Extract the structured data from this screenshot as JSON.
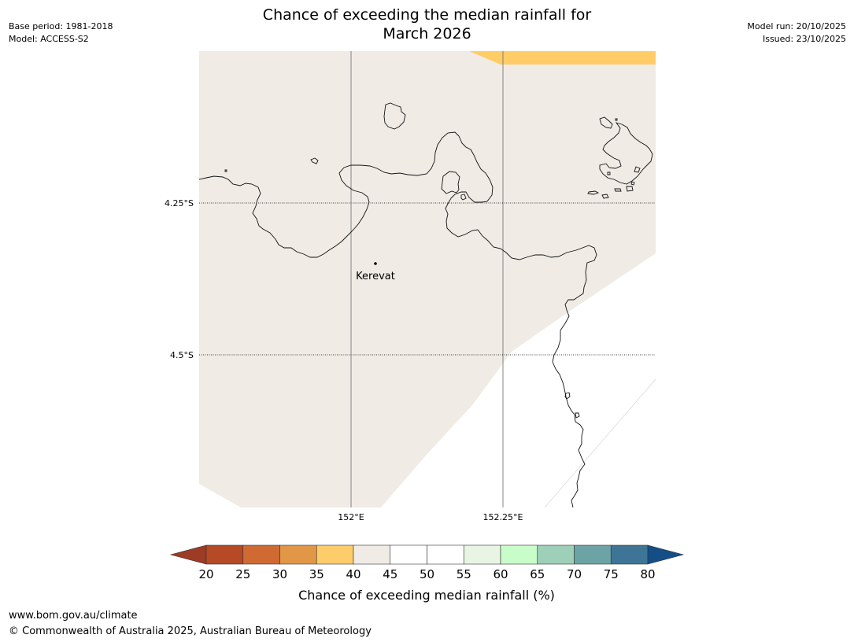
{
  "meta": {
    "base_period": "Base period: 1981-2018",
    "model": "Model: ACCESS-S2",
    "model_run": "Model run: 20/10/2025",
    "issued": "Issued: 23/10/2025"
  },
  "title": {
    "line1": "Chance of exceeding the median rainfall for",
    "line2": "March 2026"
  },
  "map": {
    "lat_labels": [
      "4.25°S",
      "4.5°S"
    ],
    "lon_labels": [
      "152°E",
      "152.25°E"
    ],
    "place": {
      "name": "Kerevat"
    },
    "colors": {
      "background": "#f0ebe5",
      "band_35_40": "#ffcc66",
      "coast": "#111111"
    }
  },
  "colorbar": {
    "tick_labels": [
      "20",
      "25",
      "30",
      "35",
      "40",
      "45",
      "50",
      "55",
      "60",
      "65",
      "70",
      "75",
      "80"
    ],
    "colors": [
      "#9d3b25",
      "#b64a27",
      "#d06a33",
      "#e29746",
      "#fdcc6b",
      "#f0ebe5",
      "#ffffff",
      "#ffffff",
      "#e8f5e4",
      "#c8fcc8",
      "#9ecfb8",
      "#6ca4a6",
      "#3e7597",
      "#134e86"
    ],
    "label": "Chance of exceeding median rainfall (%)"
  },
  "footer": {
    "website": "www.bom.gov.au/climate",
    "copyright": "© Commonwealth of Australia 2025, Australian Bureau of Meteorology"
  }
}
